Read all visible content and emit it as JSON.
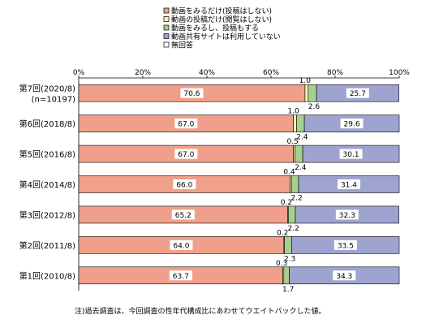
{
  "chart_data": {
    "type": "bar",
    "orientation": "horizontal",
    "stacked": "percent",
    "xlim": [
      0,
      100
    ],
    "x_ticks": [
      "0%",
      "20%",
      "40%",
      "60%",
      "80%",
      "100%"
    ],
    "categories": [
      {
        "label": "第7回(2020/8)",
        "sublabel": "(n=10197)"
      },
      {
        "label": "第6回(2018/8)",
        "sublabel": ""
      },
      {
        "label": "第5回(2016/8)",
        "sublabel": ""
      },
      {
        "label": "第4回(2014/8)",
        "sublabel": ""
      },
      {
        "label": "第3回(2012/8)",
        "sublabel": ""
      },
      {
        "label": "第2回(2011/8)",
        "sublabel": ""
      },
      {
        "label": "第1回(2010/8)",
        "sublabel": ""
      }
    ],
    "series": [
      {
        "name": "動画をみるだけ(投稿はしない)",
        "color": "#F0A08A",
        "values": [
          70.6,
          67.0,
          67.0,
          66.0,
          65.2,
          64.0,
          63.7
        ],
        "labels": [
          "70.6",
          "67.0",
          "67.0",
          "66.0",
          "65.2",
          "64.0",
          "63.7"
        ]
      },
      {
        "name": "動画の投稿だけ(閲覧はしない)",
        "color": "#F6F0B0",
        "values": [
          1.0,
          1.0,
          0.5,
          0.4,
          0.2,
          0.2,
          0.3
        ],
        "labels": [
          "1.0",
          "1.0",
          "0.5",
          "0.4",
          "0.2",
          "0.2",
          "0.3"
        ]
      },
      {
        "name": "動画をみるし、投稿もする",
        "color": "#A8D08D",
        "values": [
          2.6,
          2.4,
          2.4,
          2.2,
          2.2,
          2.3,
          1.7
        ],
        "labels": [
          "2.6",
          "2.4",
          "2.4",
          "2.2",
          "2.2",
          "2.3",
          "1.7"
        ]
      },
      {
        "name": "動画共有サイトは利用していない",
        "color": "#9FA3D0",
        "values": [
          25.7,
          29.6,
          30.1,
          31.4,
          32.3,
          33.5,
          34.3
        ],
        "labels": [
          "25.7",
          "29.6",
          "30.1",
          "31.4",
          "32.3",
          "33.5",
          "34.3"
        ]
      },
      {
        "name": "無回答",
        "color": "#FFFFFF",
        "values": [
          0,
          0,
          0,
          0,
          0,
          0,
          0
        ],
        "labels": []
      }
    ],
    "note": "注)過去調査は、今回調査の性年代構成比にあわせてウエイトバックした値。",
    "legend_position": "top"
  }
}
